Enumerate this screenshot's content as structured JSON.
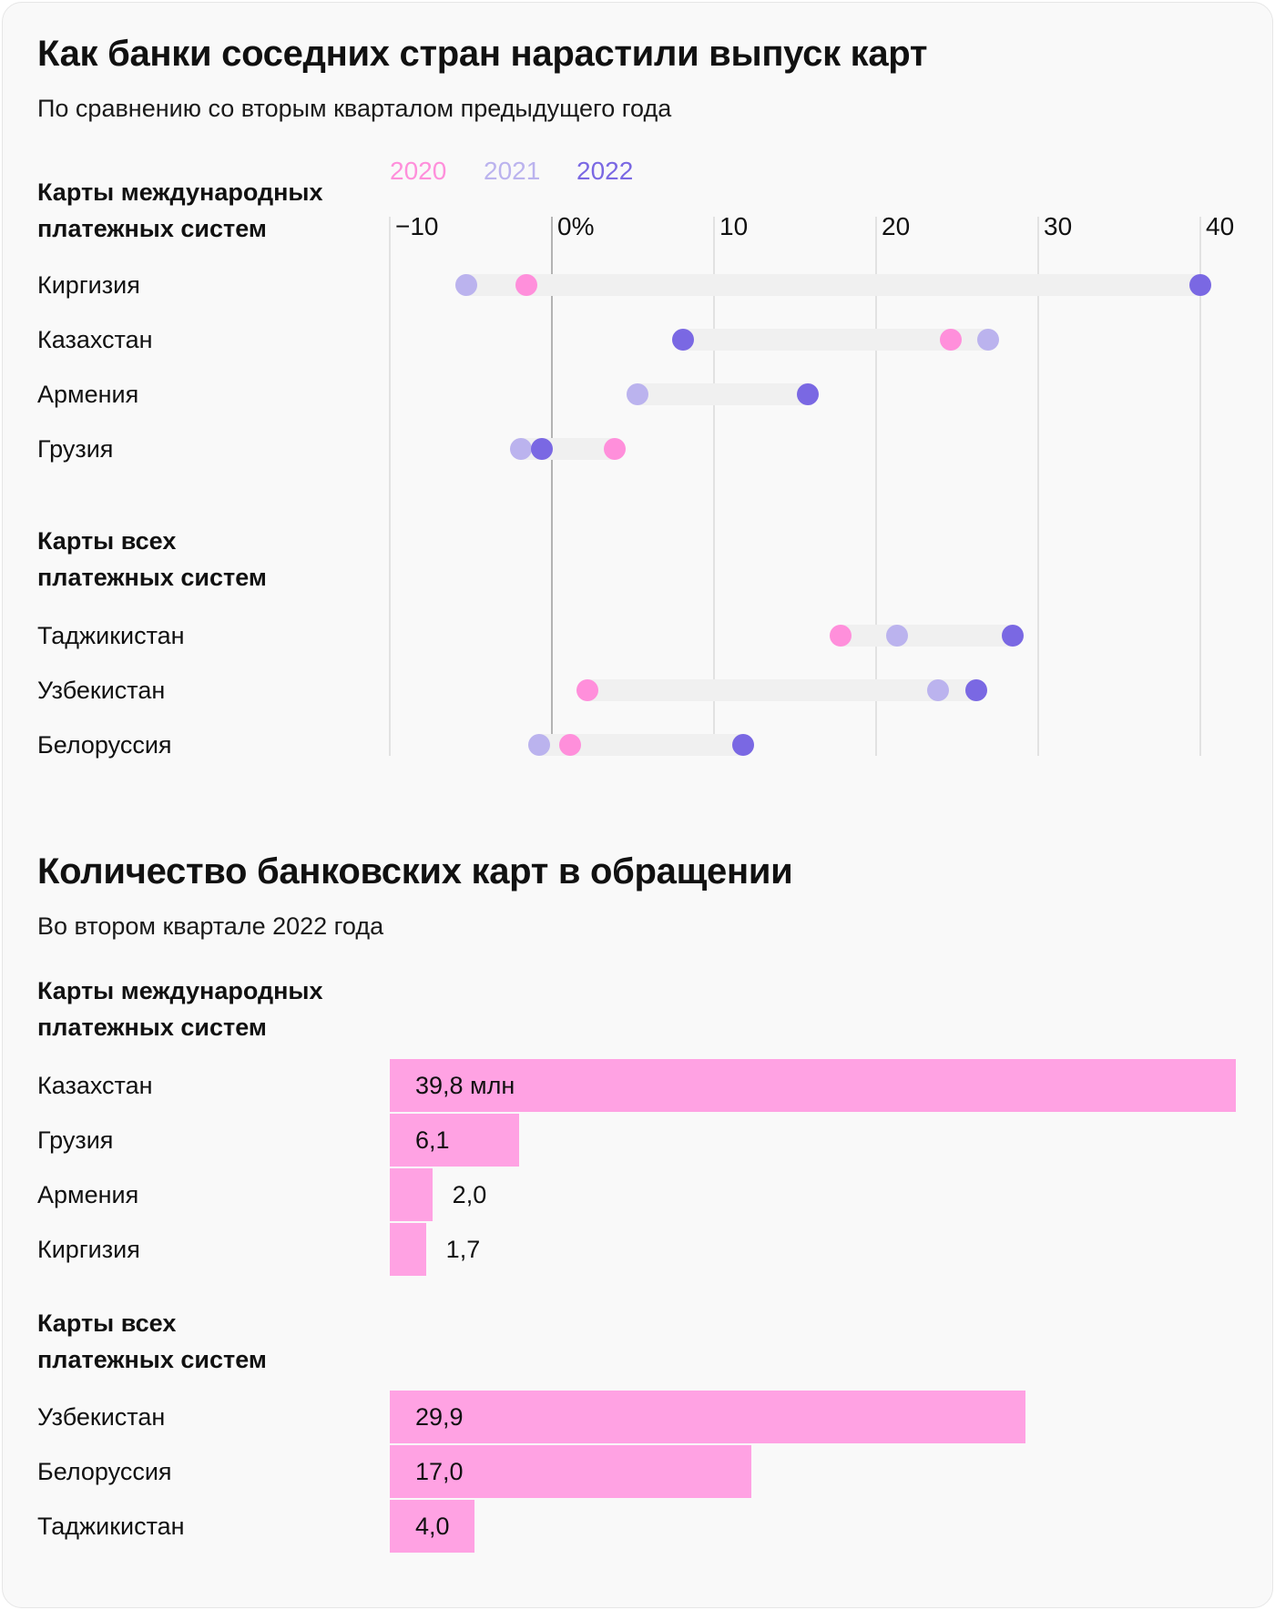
{
  "colors": {
    "y2020": "#ff8fdb",
    "y2021": "#bbb3ee",
    "y2022": "#7a68e3",
    "bar": "#ffa2e3",
    "track": "#f0f0f0"
  },
  "chart_data": [
    {
      "type": "scatter",
      "title": "Как банки соседних стран нарастили выпуск карт",
      "subtitle": "По сравнению со вторым кварталом предыдущего года",
      "legend": [
        "2020",
        "2021",
        "2022"
      ],
      "legend_position": "top",
      "xlim": [
        -10,
        40
      ],
      "ticks": [
        {
          "value": -10,
          "label": "−10"
        },
        {
          "value": 0,
          "label": "0%"
        },
        {
          "value": 10,
          "label": "10"
        },
        {
          "value": 20,
          "label": "20"
        },
        {
          "value": 30,
          "label": "30"
        },
        {
          "value": 40,
          "label": "40"
        }
      ],
      "groups": [
        {
          "heading": [
            "Карты международных",
            "платежных систем"
          ],
          "rows": [
            {
              "country": "Киргизия",
              "y2020": -1.6,
              "y2021": -5.3,
              "y2022": 40.0
            },
            {
              "country": "Казахстан",
              "y2020": 24.6,
              "y2021": 26.9,
              "y2022": 8.1
            },
            {
              "country": "Армения",
              "y2020": null,
              "y2021": 5.3,
              "y2022": 15.8
            },
            {
              "country": "Грузия",
              "y2020": 3.9,
              "y2021": -1.9,
              "y2022": -0.6
            }
          ]
        },
        {
          "heading": [
            "Карты всех",
            "платежных систем"
          ],
          "rows": [
            {
              "country": "Таджикистан",
              "y2020": 17.8,
              "y2021": 21.3,
              "y2022": 28.4
            },
            {
              "country": "Узбекистан",
              "y2020": 2.2,
              "y2021": 23.8,
              "y2022": 26.2
            },
            {
              "country": "Белоруссия",
              "y2020": 1.1,
              "y2021": -0.8,
              "y2022": 11.8
            }
          ]
        }
      ]
    },
    {
      "type": "bar",
      "title": "Количество банковских карт в обращении",
      "subtitle": "Во втором квартале 2022 года",
      "unit": "млн",
      "groups": [
        {
          "heading": [
            "Карты международных",
            "платежных систем"
          ],
          "rows": [
            {
              "country": "Казахстан",
              "value": 39.8,
              "label": "39,8 млн"
            },
            {
              "country": "Грузия",
              "value": 6.1,
              "label": "6,1"
            },
            {
              "country": "Армения",
              "value": 2.0,
              "label": "2,0"
            },
            {
              "country": "Киргизия",
              "value": 1.7,
              "label": "1,7"
            }
          ]
        },
        {
          "heading": [
            "Карты всех",
            "платежных систем"
          ],
          "rows": [
            {
              "country": "Узбекистан",
              "value": 29.9,
              "label": "29,9"
            },
            {
              "country": "Белоруссия",
              "value": 17.0,
              "label": "17,0"
            },
            {
              "country": "Таджикистан",
              "value": 4.0,
              "label": "4,0"
            }
          ]
        }
      ]
    }
  ]
}
